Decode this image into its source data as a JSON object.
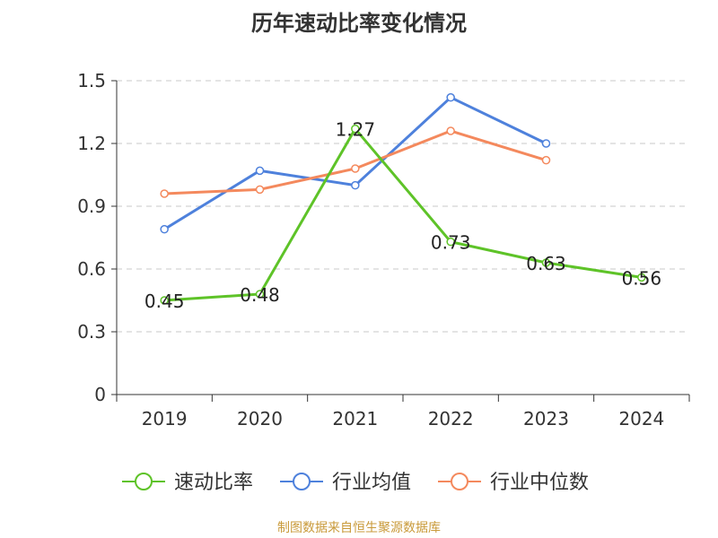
{
  "chart_data": {
    "type": "line",
    "title": "历年速动比率变化情况",
    "categories": [
      "2019",
      "2020",
      "2021",
      "2022",
      "2023",
      "2024"
    ],
    "ylim": [
      0,
      1.5
    ],
    "yticks": [
      "0",
      "0.3",
      "0.6",
      "0.9",
      "1.2",
      "1.5"
    ],
    "grid": true,
    "legend_position": "bottom",
    "series": [
      {
        "name": "速动比率",
        "color": "#5ec328",
        "values": [
          0.45,
          0.48,
          1.27,
          0.73,
          0.63,
          0.56
        ],
        "labels": [
          "0.45",
          "0.48",
          "1.27",
          "0.73",
          "0.63",
          "0.56"
        ]
      },
      {
        "name": "行业均值",
        "color": "#4e81dc",
        "values": [
          0.79,
          1.07,
          1.0,
          1.42,
          1.2,
          null
        ]
      },
      {
        "name": "行业中位数",
        "color": "#f4895d",
        "values": [
          0.96,
          0.98,
          1.08,
          1.26,
          1.12,
          null
        ]
      }
    ]
  },
  "footer": "制图数据来自恒生聚源数据库"
}
